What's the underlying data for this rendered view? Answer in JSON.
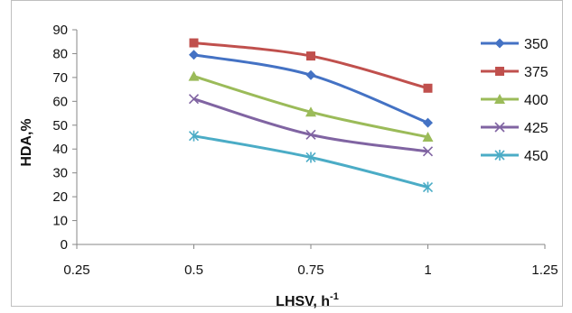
{
  "chart_data": {
    "type": "line",
    "title": "",
    "xlabel": "LHSV, h",
    "xlabel_superscript": "-1",
    "ylabel": "HDA,%",
    "xlim": [
      0.25,
      1.25
    ],
    "ylim": [
      0,
      90
    ],
    "xticks": [
      "0.25",
      "0.5",
      "0.75",
      "1",
      "1.25"
    ],
    "yticks": [
      "0",
      "10",
      "20",
      "30",
      "40",
      "50",
      "60",
      "70",
      "80",
      "90"
    ],
    "grid": false,
    "legend_position": "right",
    "x": [
      0.5,
      0.75,
      1
    ],
    "series": [
      {
        "name": "350",
        "values": [
          79.5,
          71,
          51
        ],
        "color": "#4472c4",
        "marker": "diamond"
      },
      {
        "name": "375",
        "values": [
          84.5,
          79,
          65.5
        ],
        "color": "#c0504d",
        "marker": "square"
      },
      {
        "name": "400",
        "values": [
          70.5,
          55.5,
          45
        ],
        "color": "#9bbb59",
        "marker": "triangle"
      },
      {
        "name": "425",
        "values": [
          61,
          46,
          39
        ],
        "color": "#8064a2",
        "marker": "x"
      },
      {
        "name": "450",
        "values": [
          45.5,
          36.5,
          24
        ],
        "color": "#4bacc6",
        "marker": "asterisk"
      }
    ]
  }
}
